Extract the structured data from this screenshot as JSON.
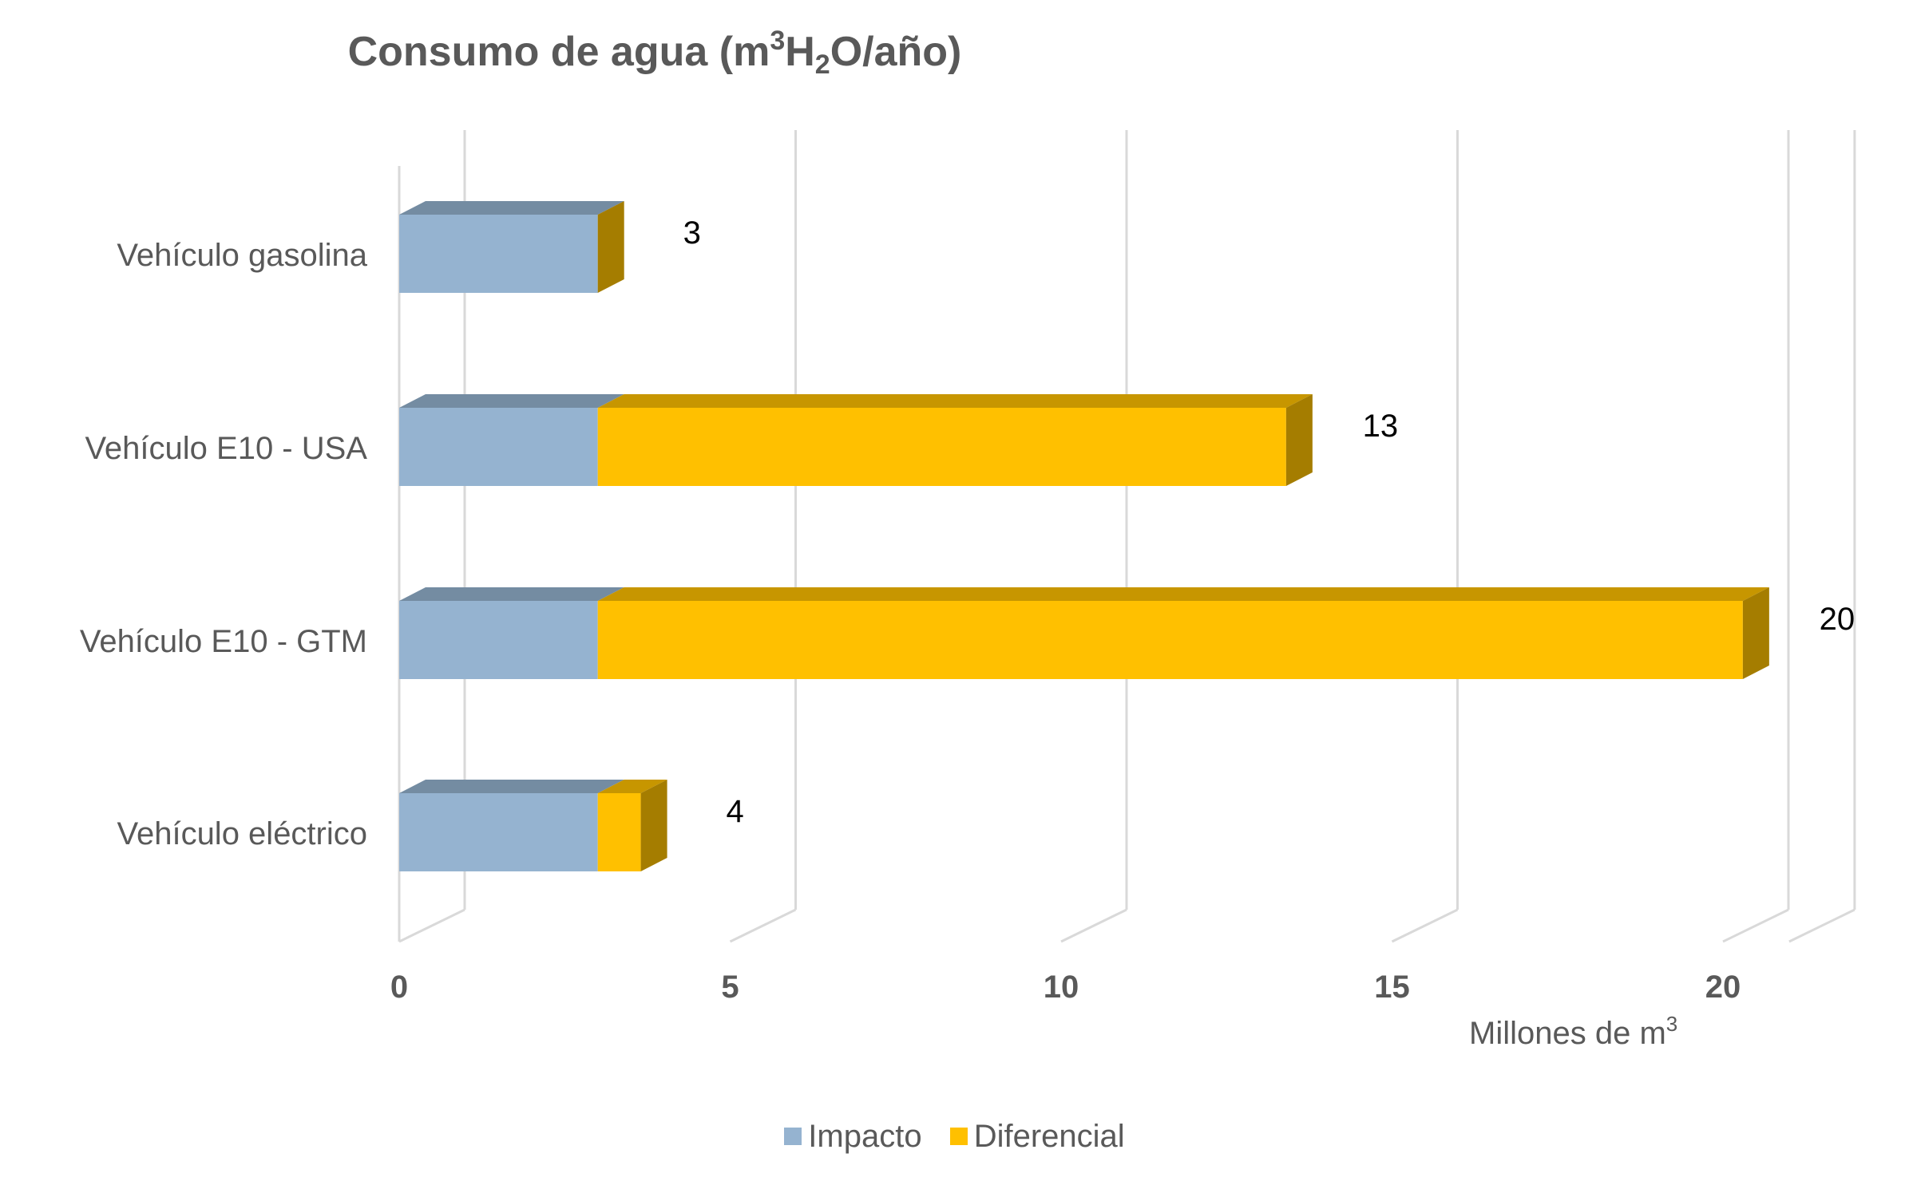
{
  "chart_data": {
    "type": "bar",
    "orientation": "horizontal",
    "stacked": true,
    "title": {
      "prefix": "Consumo de agua (m",
      "sup": "3",
      "mid": "H",
      "sub": "2",
      "suffix": "O/año)"
    },
    "x_axis_unit": {
      "text": "Millones de m",
      "sup": "3"
    },
    "xlim": [
      0,
      21
    ],
    "xticks": [
      "0",
      "5",
      "10",
      "15",
      "20"
    ],
    "categories": [
      "Vehículo gasolina",
      "Vehículo E10 - USA",
      "Vehículo E10 - GTM",
      "Vehículo eléctrico"
    ],
    "series": [
      {
        "name": "Impacto",
        "color": "#95B3D0",
        "values": [
          3.0,
          3.0,
          3.0,
          3.0
        ]
      },
      {
        "name": "Diferencial",
        "color": "#FFC000",
        "values": [
          0.0,
          10.4,
          17.3,
          0.65
        ]
      }
    ],
    "totals": [
      "3",
      "13",
      "20",
      "4"
    ],
    "grid": true,
    "legend_position": "bottom"
  }
}
